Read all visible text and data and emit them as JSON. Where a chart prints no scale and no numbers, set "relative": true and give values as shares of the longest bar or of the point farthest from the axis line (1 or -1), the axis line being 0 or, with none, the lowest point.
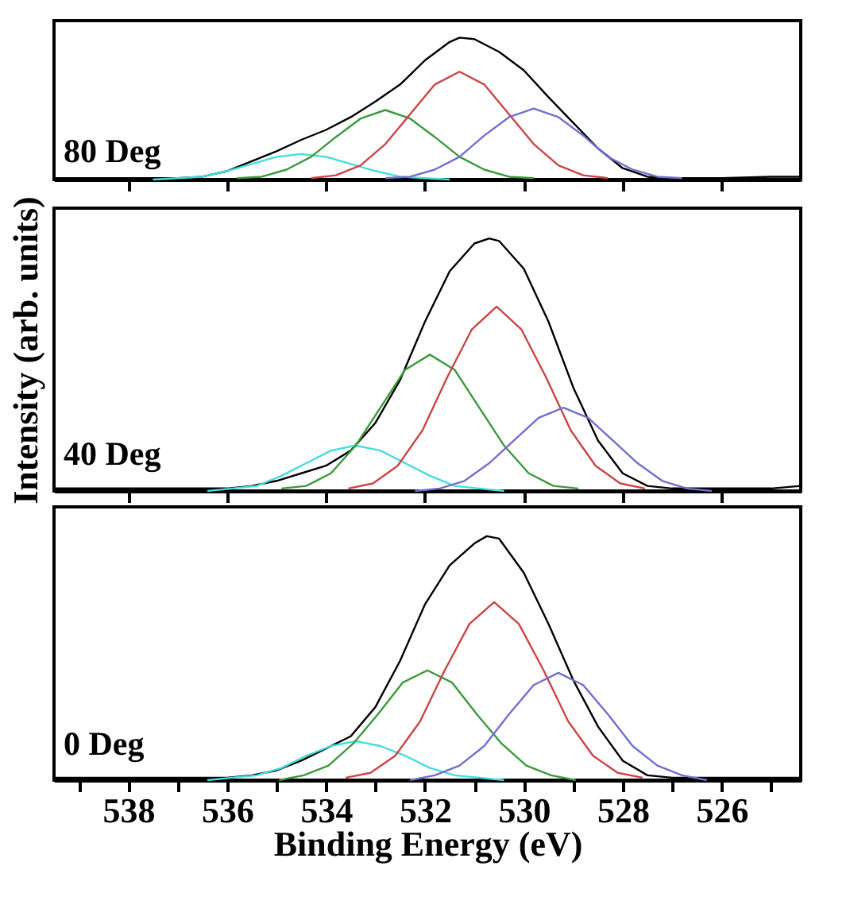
{
  "chart_data": [
    {
      "type": "line",
      "relative": true,
      "annotations": [
        "80 Deg"
      ],
      "xlim": [
        539.5,
        524.4
      ],
      "xticks": [
        538,
        536,
        534,
        532,
        530,
        528,
        526
      ],
      "tick_labels": false,
      "grid": false,
      "legend": false,
      "marker": "none",
      "line_style": "solid",
      "series": [
        {
          "color": "#000000",
          "x": [
            539.5,
            538,
            537,
            536.5,
            536,
            535.5,
            535,
            534.5,
            534,
            533.5,
            533,
            532.5,
            532,
            531.5,
            531.3,
            531,
            530.5,
            530,
            529.5,
            529,
            528.5,
            528,
            527.5,
            527,
            526,
            525,
            524.4
          ],
          "values": [
            0.01,
            0.01,
            0.01,
            0.02,
            0.06,
            0.13,
            0.2,
            0.28,
            0.35,
            0.44,
            0.55,
            0.67,
            0.84,
            0.97,
            1.0,
            0.99,
            0.9,
            0.77,
            0.58,
            0.4,
            0.22,
            0.08,
            0.02,
            0.01,
            0.01,
            0.02,
            0.02
          ]
        },
        {
          "color": "#44dddd",
          "x": [
            531.5,
            532,
            532.5,
            533,
            533.5,
            534,
            534.5,
            535,
            535.5,
            536,
            536.5,
            537,
            537.5
          ],
          "values": [
            0,
            0.01,
            0.02,
            0.06,
            0.11,
            0.16,
            0.18,
            0.16,
            0.11,
            0.06,
            0.02,
            0.01,
            0
          ]
        },
        {
          "color": "#3a9a3a",
          "x": [
            529.8,
            530.3,
            530.8,
            531.3,
            531.8,
            532.3,
            532.8,
            533.3,
            533.8,
            534.3,
            534.8,
            535.3,
            535.8
          ],
          "values": [
            0.01,
            0.02,
            0.07,
            0.16,
            0.3,
            0.43,
            0.49,
            0.43,
            0.3,
            0.16,
            0.07,
            0.02,
            0.01
          ]
        },
        {
          "color": "#cc4444",
          "x": [
            528.3,
            528.8,
            529.3,
            529.8,
            530.3,
            530.8,
            531.3,
            531.8,
            532.3,
            532.8,
            533.3,
            533.8,
            534.3
          ],
          "values": [
            0.01,
            0.03,
            0.1,
            0.25,
            0.46,
            0.67,
            0.76,
            0.67,
            0.46,
            0.25,
            0.1,
            0.03,
            0.01
          ]
        },
        {
          "color": "#6f6fd0",
          "x": [
            526.8,
            527.3,
            527.8,
            528.3,
            528.8,
            529.3,
            529.8,
            530.3,
            530.8,
            531.3,
            531.8,
            532.3,
            532.8
          ],
          "values": [
            0.01,
            0.02,
            0.07,
            0.16,
            0.31,
            0.44,
            0.5,
            0.44,
            0.31,
            0.16,
            0.07,
            0.02,
            0.01
          ]
        }
      ]
    },
    {
      "type": "line",
      "relative": true,
      "annotations": [
        "40 Deg"
      ],
      "ylabel": "Intensity (arb. units)",
      "xlim": [
        539.5,
        524.4
      ],
      "xticks": [
        538,
        536,
        534,
        532,
        530,
        528,
        526
      ],
      "tick_labels": false,
      "grid": false,
      "legend": false,
      "marker": "none",
      "line_style": "solid",
      "series": [
        {
          "color": "#000000",
          "x": [
            539.5,
            537,
            536,
            535.5,
            535,
            534.5,
            534,
            533.5,
            533,
            532.5,
            532,
            531.5,
            531,
            530.7,
            530.5,
            530,
            529.5,
            529,
            528.5,
            528,
            527.5,
            527,
            525,
            524.4
          ],
          "values": [
            0.01,
            0.01,
            0.01,
            0.02,
            0.04,
            0.07,
            0.1,
            0.16,
            0.27,
            0.44,
            0.67,
            0.87,
            0.98,
            1.0,
            0.99,
            0.88,
            0.67,
            0.41,
            0.2,
            0.07,
            0.02,
            0.01,
            0.01,
            0.02
          ]
        },
        {
          "color": "#44dddd",
          "x": [
            530.4,
            530.9,
            531.4,
            531.9,
            532.4,
            532.9,
            533.4,
            533.9,
            534.4,
            534.9,
            535.4,
            535.9,
            536.4
          ],
          "values": [
            0,
            0.01,
            0.02,
            0.06,
            0.11,
            0.16,
            0.18,
            0.16,
            0.11,
            0.06,
            0.02,
            0.01,
            0
          ]
        },
        {
          "color": "#3a9a3a",
          "x": [
            528.9,
            529.4,
            529.9,
            530.4,
            530.9,
            531.4,
            531.9,
            532.4,
            532.9,
            533.4,
            533.9,
            534.4,
            534.9
          ],
          "values": [
            0.01,
            0.02,
            0.07,
            0.18,
            0.33,
            0.48,
            0.54,
            0.48,
            0.33,
            0.18,
            0.07,
            0.02,
            0.01
          ]
        },
        {
          "color": "#cc4444",
          "x": [
            527.55,
            528.05,
            528.55,
            529.05,
            529.55,
            530.05,
            530.55,
            531.05,
            531.55,
            532.05,
            532.55,
            533.05,
            533.55
          ],
          "values": [
            0.01,
            0.03,
            0.1,
            0.24,
            0.45,
            0.64,
            0.73,
            0.64,
            0.45,
            0.24,
            0.1,
            0.03,
            0.01
          ]
        },
        {
          "color": "#6f6fd0",
          "x": [
            526.2,
            526.7,
            527.2,
            527.7,
            528.2,
            528.7,
            529.2,
            529.7,
            530.2,
            530.7,
            531.2,
            531.7,
            532.2
          ],
          "values": [
            0,
            0.01,
            0.04,
            0.11,
            0.2,
            0.29,
            0.33,
            0.29,
            0.2,
            0.11,
            0.04,
            0.01,
            0
          ]
        }
      ]
    },
    {
      "type": "line",
      "relative": true,
      "annotations": [
        "0 Deg"
      ],
      "xlabel": "Binding Energy (eV)",
      "xlim": [
        539.5,
        524.4
      ],
      "xticks": [
        {
          "value": 539,
          "label": null
        },
        538,
        {
          "value": 537,
          "label": null
        },
        536,
        {
          "value": 535,
          "label": null
        },
        534,
        {
          "value": 533,
          "label": null
        },
        532,
        {
          "value": 531,
          "label": null
        },
        530,
        {
          "value": 529,
          "label": null
        },
        528,
        {
          "value": 527,
          "label": null
        },
        526,
        {
          "value": 525,
          "label": null
        }
      ],
      "tick_labels": "x",
      "grid": false,
      "legend": false,
      "marker": "none",
      "line_style": "solid",
      "series": [
        {
          "color": "#000000",
          "x": [
            539.5,
            537,
            536,
            535.5,
            535,
            534.5,
            534,
            533.5,
            533,
            532.5,
            532,
            531.5,
            531,
            530.75,
            530.5,
            530,
            529.5,
            529,
            528.5,
            528,
            527.5,
            527,
            525,
            524.4
          ],
          "values": [
            0.01,
            0.01,
            0.01,
            0.02,
            0.04,
            0.08,
            0.13,
            0.18,
            0.3,
            0.49,
            0.72,
            0.88,
            0.97,
            1.0,
            0.99,
            0.85,
            0.64,
            0.41,
            0.22,
            0.08,
            0.02,
            0.01,
            0.01,
            0.01
          ]
        },
        {
          "color": "#44dddd",
          "x": [
            530.4,
            530.9,
            531.4,
            531.9,
            532.4,
            532.9,
            533.4,
            533.9,
            534.4,
            534.9,
            535.4,
            535.9,
            536.4
          ],
          "values": [
            0,
            0.01,
            0.02,
            0.05,
            0.1,
            0.14,
            0.16,
            0.14,
            0.1,
            0.05,
            0.02,
            0.01,
            0
          ]
        },
        {
          "color": "#3a9a3a",
          "x": [
            528.95,
            529.45,
            529.95,
            530.45,
            530.95,
            531.45,
            531.95,
            532.45,
            532.95,
            533.45,
            533.95,
            534.45,
            534.95
          ],
          "values": [
            0,
            0.02,
            0.06,
            0.15,
            0.27,
            0.4,
            0.45,
            0.4,
            0.27,
            0.15,
            0.06,
            0.02,
            0
          ]
        },
        {
          "color": "#cc4444",
          "x": [
            527.6,
            528.1,
            528.6,
            529.1,
            529.6,
            530.1,
            530.6,
            531.1,
            531.6,
            532.1,
            532.6,
            533.1,
            533.6
          ],
          "values": [
            0.01,
            0.03,
            0.1,
            0.24,
            0.45,
            0.64,
            0.73,
            0.64,
            0.45,
            0.24,
            0.1,
            0.03,
            0.01
          ]
        },
        {
          "color": "#6f6fd0",
          "x": [
            526.3,
            526.8,
            527.3,
            527.8,
            528.3,
            528.8,
            529.3,
            529.8,
            530.3,
            530.8,
            531.3,
            531.8,
            532.3
          ],
          "values": [
            0,
            0.02,
            0.06,
            0.14,
            0.27,
            0.39,
            0.44,
            0.39,
            0.27,
            0.14,
            0.06,
            0.02,
            0
          ]
        }
      ]
    }
  ]
}
